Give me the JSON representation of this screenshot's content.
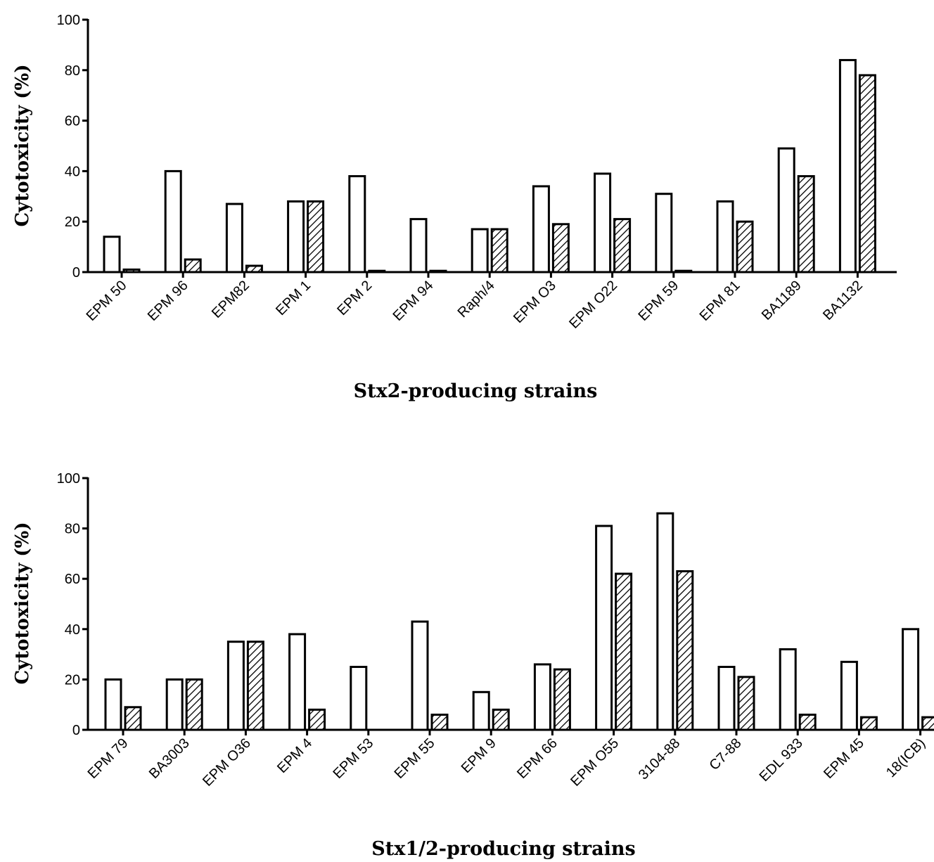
{
  "chart_data": [
    {
      "type": "bar",
      "title": "",
      "xlabel": "Stx2-producing strains",
      "ylabel": "Cytotoxicity (%)",
      "ylim": [
        0,
        100
      ],
      "yticks": [
        "0",
        "20",
        "40",
        "60",
        "80",
        "100"
      ],
      "grid": false,
      "legend": "none",
      "categories": [
        "EPM 50",
        "EPM 96",
        "EPM82",
        "EPM 1",
        "EPM 2",
        "EPM 94",
        "Raph/4",
        "EPM O3",
        "EPM O22",
        "EPM 59",
        "EPM 81",
        "BA1189",
        "BA1132"
      ],
      "series": [
        {
          "fill": "open",
          "values": [
            14,
            40,
            27,
            28,
            38,
            21,
            17,
            34,
            39,
            31,
            28,
            49,
            84
          ]
        },
        {
          "fill": "hatched",
          "values": [
            1,
            5,
            2.5,
            28,
            0.5,
            0.5,
            17,
            19,
            21,
            0.5,
            20,
            38,
            78
          ]
        }
      ]
    },
    {
      "type": "bar",
      "title": "",
      "xlabel": "Stx1/2-producing strains",
      "ylabel": "Cytotoxicity (%)",
      "ylim": [
        0,
        100
      ],
      "yticks": [
        "0",
        "20",
        "40",
        "60",
        "80",
        "100"
      ],
      "grid": false,
      "legend": "none",
      "categories": [
        "EPM 79",
        "BA3003",
        "EPM O36",
        "EPM 4",
        "EPM 53",
        "EPM 55",
        "EPM 9",
        "EPM 66",
        "EPM O55",
        "3104-88",
        "C7-88",
        "EDL 933",
        "EPM 45",
        "18(ICB)"
      ],
      "series": [
        {
          "fill": "open",
          "values": [
            20,
            20,
            35,
            38,
            25,
            43,
            15,
            26,
            81,
            86,
            25,
            32,
            27,
            40
          ]
        },
        {
          "fill": "hatched",
          "values": [
            9,
            20,
            35,
            8,
            0,
            6,
            8,
            24,
            62,
            63,
            21,
            6,
            5,
            5
          ]
        }
      ]
    }
  ],
  "colors": {
    "bar_fill": "#ffffff",
    "stroke": "#000000",
    "hatch": "#000000"
  }
}
